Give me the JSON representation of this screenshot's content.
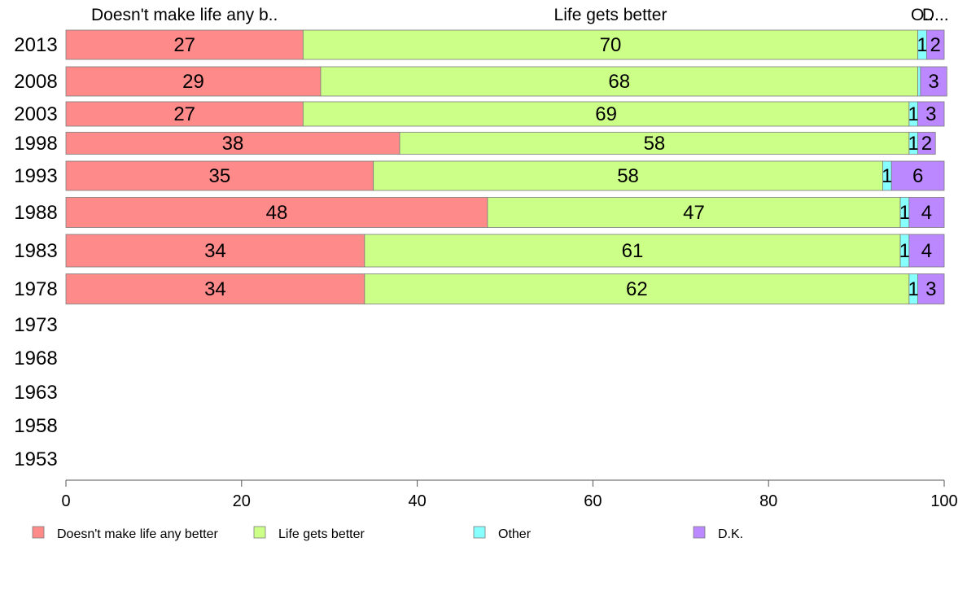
{
  "chart_data": {
    "type": "bar",
    "orientation": "horizontal",
    "stacked": true,
    "categories": [
      "2013",
      "2008",
      "2003",
      "1998",
      "1993",
      "1988",
      "1983",
      "1978",
      "1973",
      "1968",
      "1963",
      "1958",
      "1953"
    ],
    "series": [
      {
        "name": "Doesn't make life any better",
        "header": "Doesn't make life any b..",
        "color": "#ff8a8a",
        "values": [
          27,
          29,
          27,
          38,
          35,
          48,
          34,
          34,
          null,
          null,
          null,
          null,
          null
        ],
        "labels": [
          "27",
          "29",
          "27",
          "38",
          "35",
          "48",
          "34",
          "34",
          "",
          "",
          "",
          "",
          ""
        ]
      },
      {
        "name": "Life gets better",
        "header": "Life gets better",
        "color": "#ccff88",
        "values": [
          70,
          68,
          69,
          58,
          58,
          47,
          61,
          62,
          null,
          null,
          null,
          null,
          null
        ],
        "labels": [
          "70",
          "68",
          "69",
          "58",
          "58",
          "47",
          "61",
          "62",
          "",
          "",
          "",
          "",
          ""
        ]
      },
      {
        "name": "Other",
        "header": "O..",
        "color": "#88ffff",
        "values": [
          1,
          0.3,
          1,
          1,
          1,
          1,
          1,
          1,
          null,
          null,
          null,
          null,
          null
        ],
        "labels": [
          "1",
          "",
          "1",
          "1",
          "1",
          "1",
          "1",
          "1",
          "",
          "",
          "",
          "",
          ""
        ]
      },
      {
        "name": "D.K.",
        "header": "D...",
        "color": "#bb88ff",
        "values": [
          2,
          3,
          3,
          2,
          6,
          4,
          4,
          3,
          null,
          null,
          null,
          null,
          null
        ],
        "labels": [
          "2",
          "3",
          "3",
          "2",
          "6",
          "4",
          "4",
          "3",
          "",
          "",
          "",
          "",
          ""
        ]
      }
    ],
    "xlim": [
      0,
      100
    ],
    "xticks": [
      "0",
      "20",
      "40",
      "60",
      "80",
      "100"
    ],
    "legend_position": "bottom",
    "grid": false
  }
}
